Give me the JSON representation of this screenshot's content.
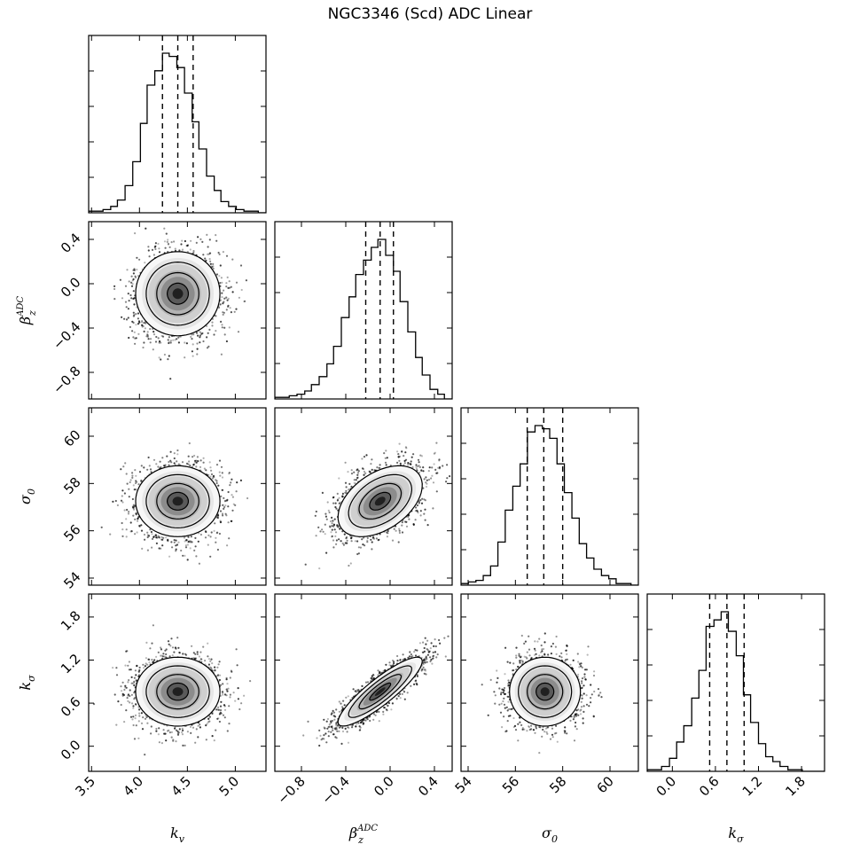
{
  "chart_data": {
    "type": "corner",
    "title": "NGC3346 (Scd) ADC Linear",
    "parameters": [
      {
        "key": "kv",
        "label": "k",
        "label_sub": "v",
        "label_sup": "",
        "range": [
          3.47,
          5.32
        ],
        "ticks": [
          3.5,
          4.0,
          4.5,
          5.0
        ],
        "tick_labels": [
          "3.5",
          "4.0",
          "4.5",
          "5.0"
        ],
        "quantiles": [
          4.24,
          4.4,
          4.56
        ],
        "mean": 4.4,
        "sd": 0.22,
        "hist_bins": [
          3.47,
          3.54,
          3.62,
          3.7,
          3.77,
          3.85,
          3.93,
          4.01,
          4.08,
          4.16,
          4.24,
          4.31,
          4.39,
          4.47,
          4.55,
          4.62,
          4.7,
          4.78,
          4.85,
          4.93,
          5.01,
          5.09,
          5.16,
          5.24,
          5.32
        ],
        "hist_counts": [
          1,
          1,
          2,
          4,
          8,
          17,
          32,
          56,
          80,
          89,
          100,
          98,
          91,
          75,
          57,
          40,
          23,
          14,
          7,
          4,
          2,
          1,
          1,
          0
        ]
      },
      {
        "key": "beta",
        "label": "β",
        "label_sub": "z",
        "label_sup": "ADC",
        "range": [
          -1.04,
          0.56
        ],
        "ticks": [
          -0.8,
          -0.4,
          0.0,
          0.4
        ],
        "tick_labels": [
          "−0.8",
          "−0.4",
          "0.0",
          "0.4"
        ],
        "quantiles": [
          -0.22,
          -0.09,
          0.03
        ],
        "mean": -0.09,
        "sd": 0.19,
        "hist_bins": [
          -1.04,
          -0.97,
          -0.91,
          -0.84,
          -0.77,
          -0.71,
          -0.64,
          -0.57,
          -0.51,
          -0.44,
          -0.37,
          -0.31,
          -0.24,
          -0.17,
          -0.11,
          -0.04,
          0.03,
          0.09,
          0.16,
          0.23,
          0.29,
          0.36,
          0.43,
          0.49,
          0.56
        ],
        "hist_counts": [
          1,
          1,
          2,
          3,
          5,
          9,
          14,
          22,
          33,
          51,
          64,
          78,
          87,
          95,
          100,
          90,
          80,
          61,
          42,
          26,
          15,
          6,
          3,
          0
        ]
      },
      {
        "key": "sigma0",
        "label": "σ",
        "label_sub": "0",
        "label_sup": "",
        "range": [
          53.7,
          61.2
        ],
        "ticks": [
          54,
          56,
          58,
          60
        ],
        "tick_labels": [
          "54",
          "56",
          "58",
          "60"
        ],
        "quantiles": [
          56.5,
          57.2,
          58.0
        ],
        "mean": 57.25,
        "sd": 0.75,
        "hist_bins": [
          53.7,
          54.01,
          54.33,
          54.64,
          54.95,
          55.26,
          55.57,
          55.89,
          56.2,
          56.51,
          56.83,
          57.14,
          57.45,
          57.76,
          58.07,
          58.39,
          58.7,
          59.01,
          59.32,
          59.64,
          59.95,
          60.26,
          60.58,
          60.89,
          61.2
        ],
        "hist_counts": [
          1,
          2,
          3,
          6,
          12,
          27,
          47,
          62,
          76,
          96,
          100,
          98,
          92,
          76,
          58,
          42,
          26,
          17,
          10,
          6,
          4,
          1,
          1,
          0
        ]
      },
      {
        "key": "ksigma",
        "label": "k",
        "label_sub": "σ",
        "label_sup": "",
        "range": [
          -0.35,
          2.12
        ],
        "ticks": [
          0.0,
          0.6,
          1.2,
          1.8
        ],
        "tick_labels": [
          "0.0",
          "0.6",
          "1.2",
          "1.8"
        ],
        "quantiles": [
          0.52,
          0.76,
          1.0
        ],
        "mean": 0.76,
        "sd": 0.24,
        "hist_bins": [
          -0.35,
          -0.25,
          -0.15,
          -0.04,
          0.06,
          0.16,
          0.27,
          0.37,
          0.47,
          0.58,
          0.68,
          0.78,
          0.89,
          0.99,
          1.09,
          1.2,
          1.3,
          1.4,
          1.5,
          1.61,
          1.71,
          1.81,
          1.92,
          2.02,
          2.12
        ],
        "hist_counts": [
          1,
          1,
          3,
          8,
          18,
          28,
          45,
          62,
          89,
          93,
          98,
          86,
          71,
          47,
          30,
          17,
          9,
          6,
          3,
          1,
          1,
          0,
          0,
          0
        ]
      }
    ],
    "correlations": {
      "1,0": 0.0,
      "2,0": 0.0,
      "2,1": 0.45,
      "3,0": 0.0,
      "3,1": 0.88,
      "3,2": 0.0
    },
    "contour_levels": [
      0.5,
      1.0,
      1.5,
      2.0
    ],
    "scatter_points_per_panel": 2200,
    "colors": {
      "line": "#000000",
      "hist_fill": "#000000",
      "background": "#ffffff"
    },
    "grid": false,
    "legend": "none"
  }
}
